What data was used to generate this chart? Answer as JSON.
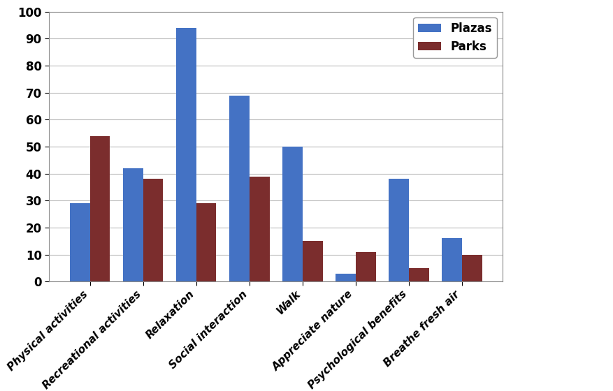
{
  "categories": [
    "Physical activities",
    "Recreational activities",
    "Relaxation",
    "Social interaction",
    "Walk",
    "Appreciate nature",
    "Psychological benefits",
    "Breathe fresh air"
  ],
  "plazas": [
    29,
    42,
    94,
    69,
    50,
    3,
    38,
    16
  ],
  "parks": [
    54,
    38,
    29,
    39,
    15,
    11,
    5,
    10
  ],
  "plazas_color": "#4472C4",
  "parks_color": "#7B2D2D",
  "ylim": [
    0,
    100
  ],
  "yticks": [
    0,
    10,
    20,
    30,
    40,
    50,
    60,
    70,
    80,
    90,
    100
  ],
  "legend_labels": [
    "Plazas",
    "Parks"
  ],
  "bar_width": 0.38,
  "background_color": "#FFFFFF",
  "grid_color": "#BBBBBB",
  "tick_labelsize": 11,
  "legend_fontsize": 12,
  "ytick_fontsize": 12
}
